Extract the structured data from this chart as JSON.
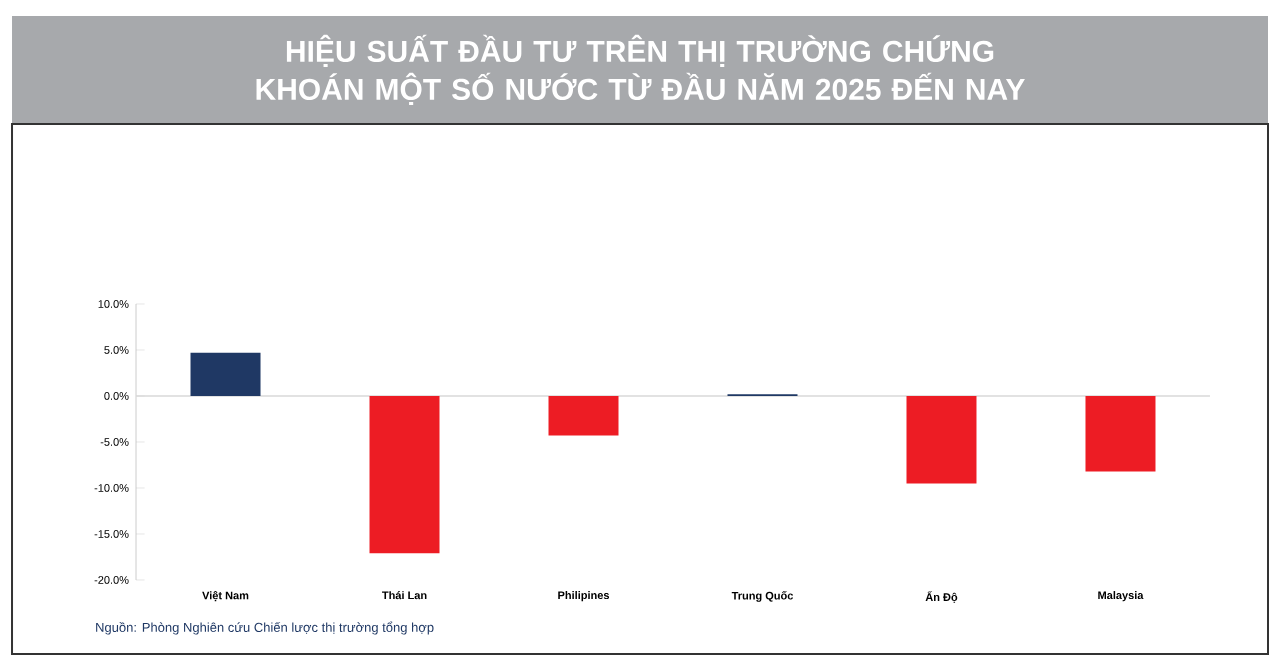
{
  "chart_data": {
    "type": "bar",
    "title": "HIỆU SUẤT ĐẦU TƯ TRÊN THỊ TRƯỜNG CHỨNG KHOÁN MỘT SỐ NƯỚC TỪ ĐẦU NĂM 2025 ĐẾN NAY",
    "categories": [
      "Việt Nam",
      "Thái Lan",
      "Philipines",
      "Trung Quốc",
      "Ấn Độ",
      "Malaysia"
    ],
    "values": [
      4.7,
      -17.1,
      -4.3,
      0.2,
      -9.5,
      -8.2
    ],
    "colors": [
      "#1f3864",
      "#ed1c24",
      "#ed1c24",
      "#1f3864",
      "#ed1c24",
      "#ed1c24"
    ],
    "ylim": [
      -20,
      10
    ],
    "yticks": [
      {
        "value": -20,
        "label": "-20.0%"
      },
      {
        "value": -15,
        "label": "-15.0%"
      },
      {
        "value": -10,
        "label": "-10.0%"
      },
      {
        "value": -5,
        "label": "-5.0%"
      },
      {
        "value": 0,
        "label": "0.0%"
      },
      {
        "value": 5,
        "label": "5.0%"
      },
      {
        "value": 10,
        "label": "10.0%"
      }
    ],
    "ref_lines": [
      {
        "axis": "y",
        "value": 0,
        "color": "#d9d9d9"
      }
    ],
    "annotations": [
      "Nguồn: Phòng Nghiên cứu Chiến lược thị trường tổng hợp"
    ]
  }
}
